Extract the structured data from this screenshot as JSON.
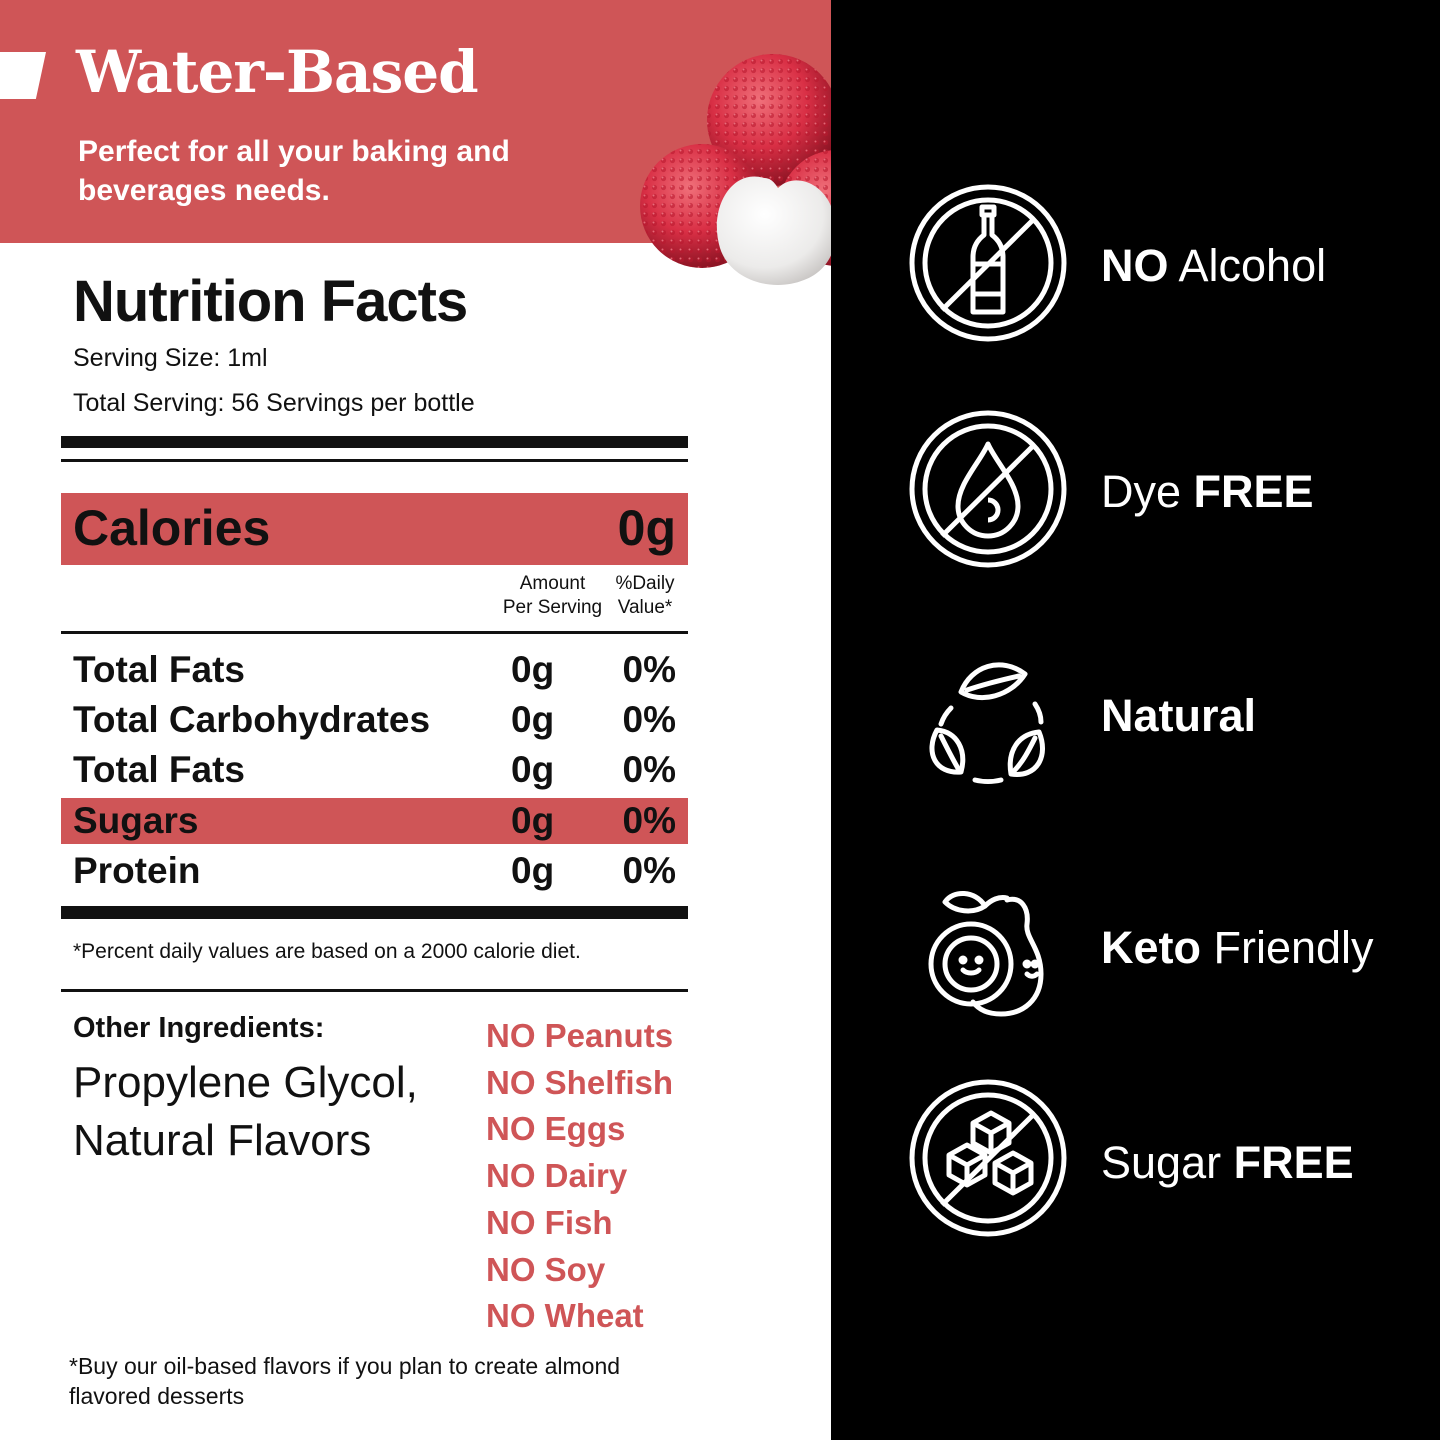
{
  "banner": {
    "title": "Water-Based",
    "subtitle": "Perfect for all your baking and beverages needs."
  },
  "nutrition": {
    "title": "Nutrition Facts",
    "serving_size": "Serving Size: 1ml",
    "total_serving": "Total Serving: 56 Servings per bottle",
    "calories_label": "Calories",
    "calories_value": "0g",
    "col_amount_1": "Amount",
    "col_amount_2": "Per Serving",
    "col_daily_1": "%Daily",
    "col_daily_2": "Value*",
    "rows": [
      {
        "name": "Total Fats",
        "amount": "0g",
        "dv": "0%"
      },
      {
        "name": "Total Carbohydrates",
        "amount": "0g",
        "dv": "0%"
      },
      {
        "name": "Total Fats",
        "amount": "0g",
        "dv": "0%"
      },
      {
        "name": "Sugars",
        "amount": "0g",
        "dv": "0%"
      },
      {
        "name": "Protein",
        "amount": "0g",
        "dv": "0%"
      }
    ],
    "footnote": "*Percent daily values are based on a 2000 calorie diet."
  },
  "ingredients": {
    "heading": "Other Ingredients:",
    "text": "Propylene Glycol, Natural Flavors"
  },
  "allergens": [
    "NO Peanuts",
    "NO Shelfish",
    "NO Eggs",
    "NO Dairy",
    "NO Fish",
    "NO Soy",
    "NO Wheat"
  ],
  "oil_note": "*Buy our oil-based flavors if you plan to create almond flavored desserts",
  "features": [
    {
      "icon": "no-alcohol-icon",
      "light": "",
      "bold": "NO",
      "rest": " Alcohol"
    },
    {
      "icon": "dye-free-icon",
      "light": "Dye ",
      "bold": "FREE",
      "rest": ""
    },
    {
      "icon": "natural-leaves-icon",
      "light": "",
      "bold": "Natural",
      "rest": ""
    },
    {
      "icon": "keto-avocado-icon",
      "light": "",
      "bold": "Keto",
      "rest": " Friendly"
    },
    {
      "icon": "sugar-free-icon",
      "light": "Sugar ",
      "bold": "FREE",
      "rest": ""
    }
  ],
  "colors": {
    "accent": "#cf5557",
    "dark": "#000000",
    "text": "#111111"
  }
}
